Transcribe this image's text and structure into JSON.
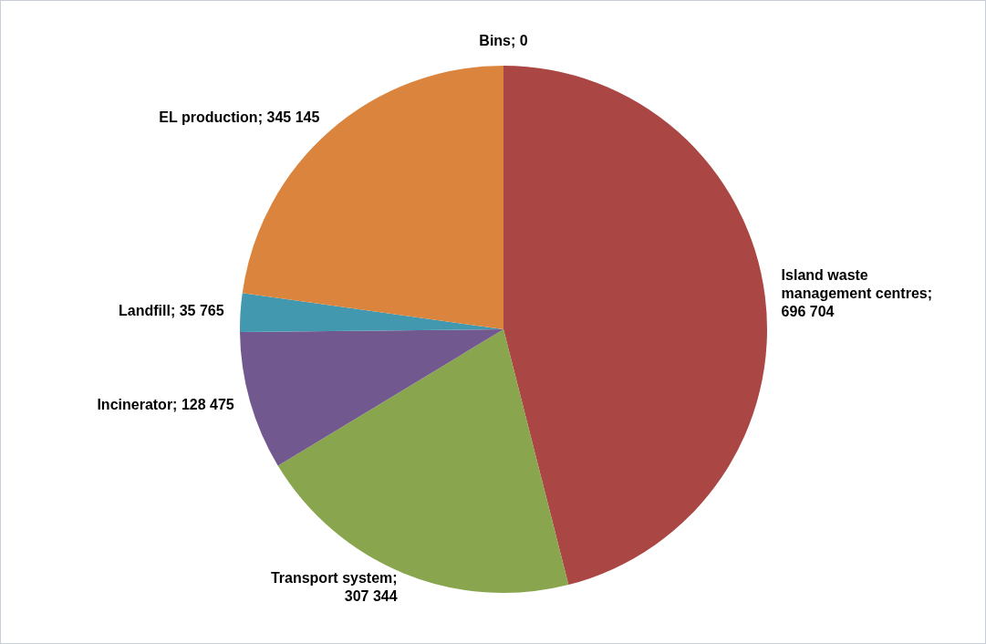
{
  "chart_data": {
    "type": "pie",
    "categories": [
      "Bins",
      "Island waste management centres",
      "Transport system",
      "Incinerator",
      "Landfill",
      "EL production"
    ],
    "values": [
      0,
      696704,
      307344,
      128475,
      35765,
      345145
    ],
    "value_labels": [
      "; 0",
      "; 696 704",
      "; 307 344",
      "; 128 475",
      "; 35 765",
      "; 345 145"
    ],
    "colors": [
      "#4a7ebb",
      "#aa4643",
      "#89a54e",
      "#71588f",
      "#4198af",
      "#db843d"
    ],
    "legend": false
  }
}
